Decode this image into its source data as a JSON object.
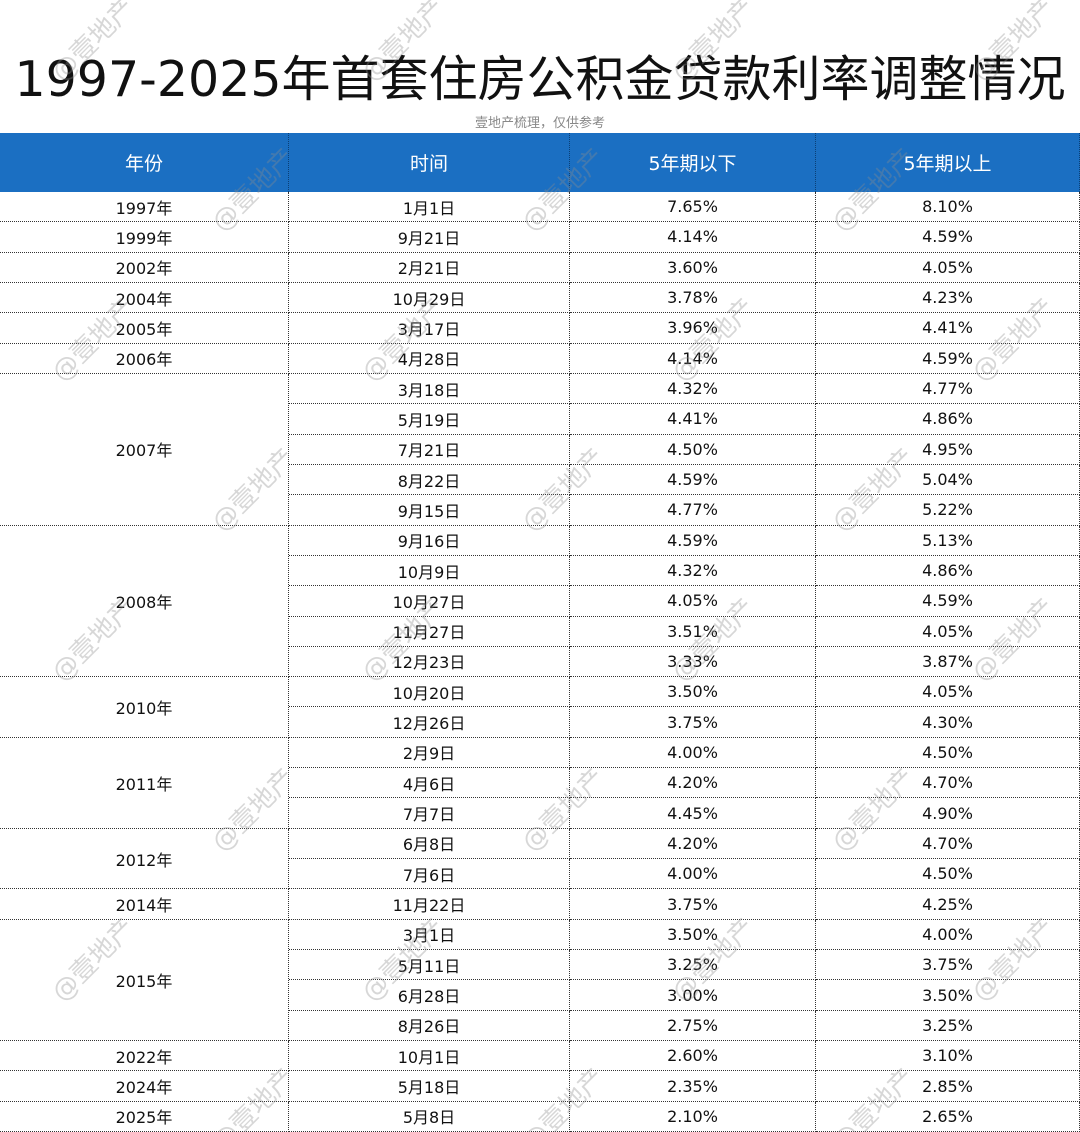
{
  "header": {
    "title": "1997-2025年首套住房公积金贷款利率调整情况",
    "subtitle": "壹地产梳理，仅供参考"
  },
  "watermark": "@壹地产",
  "table": {
    "columns": [
      "年份",
      "时间",
      "5年期以下",
      "5年期以上"
    ],
    "groups": [
      {
        "year": "1997年",
        "rows": [
          [
            "1月1日",
            "7.65%",
            "8.10%"
          ]
        ]
      },
      {
        "year": "1999年",
        "rows": [
          [
            "9月21日",
            "4.14%",
            "4.59%"
          ]
        ]
      },
      {
        "year": "2002年",
        "rows": [
          [
            "2月21日",
            "3.60%",
            "4.05%"
          ]
        ]
      },
      {
        "year": "2004年",
        "rows": [
          [
            "10月29日",
            "3.78%",
            "4.23%"
          ]
        ]
      },
      {
        "year": "2005年",
        "rows": [
          [
            "3月17日",
            "3.96%",
            "4.41%"
          ]
        ]
      },
      {
        "year": "2006年",
        "rows": [
          [
            "4月28日",
            "4.14%",
            "4.59%"
          ]
        ]
      },
      {
        "year": "2007年",
        "rows": [
          [
            "3月18日",
            "4.32%",
            "4.77%"
          ],
          [
            "5月19日",
            "4.41%",
            "4.86%"
          ],
          [
            "7月21日",
            "4.50%",
            "4.95%"
          ],
          [
            "8月22日",
            "4.59%",
            "5.04%"
          ],
          [
            "9月15日",
            "4.77%",
            "5.22%"
          ]
        ]
      },
      {
        "year": "2008年",
        "rows": [
          [
            "9月16日",
            "4.59%",
            "5.13%"
          ],
          [
            "10月9日",
            "4.32%",
            "4.86%"
          ],
          [
            "10月27日",
            "4.05%",
            "4.59%"
          ],
          [
            "11月27日",
            "3.51%",
            "4.05%"
          ],
          [
            "12月23日",
            "3.33%",
            "3.87%"
          ]
        ]
      },
      {
        "year": "2010年",
        "rows": [
          [
            "10月20日",
            "3.50%",
            "4.05%"
          ],
          [
            "12月26日",
            "3.75%",
            "4.30%"
          ]
        ]
      },
      {
        "year": "2011年",
        "rows": [
          [
            "2月9日",
            "4.00%",
            "4.50%"
          ],
          [
            "4月6日",
            "4.20%",
            "4.70%"
          ],
          [
            "7月7日",
            "4.45%",
            "4.90%"
          ]
        ]
      },
      {
        "year": "2012年",
        "rows": [
          [
            "6月8日",
            "4.20%",
            "4.70%"
          ],
          [
            "7月6日",
            "4.00%",
            "4.50%"
          ]
        ]
      },
      {
        "year": "2014年",
        "rows": [
          [
            "11月22日",
            "3.75%",
            "4.25%"
          ]
        ]
      },
      {
        "year": "2015年",
        "rows": [
          [
            "3月1日",
            "3.50%",
            "4.00%"
          ],
          [
            "5月11日",
            "3.25%",
            "3.75%"
          ],
          [
            "6月28日",
            "3.00%",
            "3.50%"
          ],
          [
            "8月26日",
            "2.75%",
            "3.25%"
          ]
        ]
      },
      {
        "year": "2022年",
        "rows": [
          [
            "10月1日",
            "2.60%",
            "3.10%"
          ]
        ]
      },
      {
        "year": "2024年",
        "rows": [
          [
            "5月18日",
            "2.35%",
            "2.85%"
          ]
        ]
      },
      {
        "year": "2025年",
        "rows": [
          [
            "5月8日",
            "2.10%",
            "2.65%"
          ]
        ]
      }
    ]
  }
}
